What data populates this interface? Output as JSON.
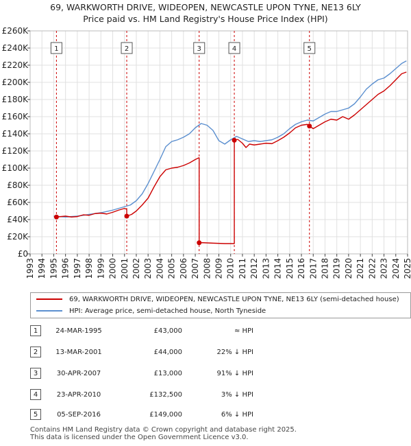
{
  "title": {
    "line1": "69, WARKWORTH DRIVE, WIDEOPEN, NEWCASTLE UPON TYNE, NE13 6LY",
    "line2": "Price paid vs. HM Land Registry's House Price Index (HPI)"
  },
  "colors": {
    "price_paid": "#cc0000",
    "hpi": "#5b8fcf",
    "sale_marker_line": "#cc0000",
    "grid": "#e0e0e0"
  },
  "chart_data": {
    "type": "line",
    "xlim": [
      1993,
      2025
    ],
    "ylim": [
      0,
      260000
    ],
    "x_ticks": [
      "1993",
      "1994",
      "1995",
      "1996",
      "1997",
      "1998",
      "1999",
      "2000",
      "2001",
      "2002",
      "2003",
      "2004",
      "2005",
      "2006",
      "2007",
      "2008",
      "2009",
      "2010",
      "2011",
      "2012",
      "2013",
      "2014",
      "2015",
      "2016",
      "2017",
      "2018",
      "2019",
      "2020",
      "2021",
      "2022",
      "2023",
      "2024",
      "2025"
    ],
    "y_ticks": [
      {
        "value": 0,
        "label": "£0"
      },
      {
        "value": 20000,
        "label": "£20K"
      },
      {
        "value": 40000,
        "label": "£40K"
      },
      {
        "value": 60000,
        "label": "£60K"
      },
      {
        "value": 80000,
        "label": "£80K"
      },
      {
        "value": 100000,
        "label": "£100K"
      },
      {
        "value": 120000,
        "label": "£120K"
      },
      {
        "value": 140000,
        "label": "£140K"
      },
      {
        "value": 160000,
        "label": "£160K"
      },
      {
        "value": 180000,
        "label": "£180K"
      },
      {
        "value": 200000,
        "label": "£200K"
      },
      {
        "value": 220000,
        "label": "£220K"
      },
      {
        "value": 240000,
        "label": "£240K"
      },
      {
        "value": 260000,
        "label": "£260K"
      }
    ],
    "grid": true,
    "legend_position": "bottom",
    "series": [
      {
        "name": "69, WARKWORTH DRIVE, WIDEOPEN, NEWCASTLE UPON TYNE, NE13 6LY (semi-detached house)",
        "color": "#cc0000",
        "points": [
          [
            1995.23,
            43000
          ],
          [
            1995.6,
            43500
          ],
          [
            1996.0,
            44000
          ],
          [
            1996.5,
            43000
          ],
          [
            1997.0,
            43500
          ],
          [
            1997.5,
            45500
          ],
          [
            1998.0,
            45000
          ],
          [
            1998.5,
            47000
          ],
          [
            1999.0,
            47500
          ],
          [
            1999.5,
            46500
          ],
          [
            2000.0,
            48500
          ],
          [
            2000.5,
            51000
          ],
          [
            2001.0,
            53000
          ],
          [
            2001.19,
            52000
          ],
          [
            2001.19,
            44000
          ],
          [
            2001.6,
            46000
          ],
          [
            2002.0,
            50000
          ],
          [
            2002.5,
            57000
          ],
          [
            2003.0,
            65000
          ],
          [
            2003.5,
            78000
          ],
          [
            2004.0,
            90000
          ],
          [
            2004.5,
            98000
          ],
          [
            2005.0,
            100000
          ],
          [
            2005.5,
            101000
          ],
          [
            2006.0,
            103000
          ],
          [
            2006.5,
            106000
          ],
          [
            2007.0,
            110000
          ],
          [
            2007.3,
            112000
          ],
          [
            2007.33,
            112000
          ],
          [
            2007.33,
            13000
          ],
          [
            2007.7,
            13000
          ],
          [
            2008.5,
            12500
          ],
          [
            2009.5,
            12000
          ],
          [
            2010.31,
            12000
          ],
          [
            2010.31,
            132500
          ],
          [
            2010.6,
            133500
          ],
          [
            2011.0,
            129000
          ],
          [
            2011.3,
            124000
          ],
          [
            2011.6,
            128000
          ],
          [
            2012.0,
            127000
          ],
          [
            2012.5,
            128000
          ],
          [
            2013.0,
            129000
          ],
          [
            2013.5,
            128500
          ],
          [
            2014.0,
            132000
          ],
          [
            2014.5,
            136000
          ],
          [
            2015.0,
            141000
          ],
          [
            2015.5,
            147000
          ],
          [
            2016.0,
            150000
          ],
          [
            2016.5,
            151000
          ],
          [
            2016.68,
            149000
          ],
          [
            2017.0,
            146000
          ],
          [
            2017.5,
            150000
          ],
          [
            2018.0,
            154000
          ],
          [
            2018.5,
            157000
          ],
          [
            2019.0,
            156000
          ],
          [
            2019.5,
            160000
          ],
          [
            2020.0,
            157000
          ],
          [
            2020.5,
            162000
          ],
          [
            2021.0,
            168000
          ],
          [
            2021.5,
            174000
          ],
          [
            2022.0,
            180000
          ],
          [
            2022.5,
            186000
          ],
          [
            2023.0,
            190000
          ],
          [
            2023.5,
            196000
          ],
          [
            2024.0,
            203000
          ],
          [
            2024.5,
            210000
          ],
          [
            2024.9,
            212000
          ]
        ]
      },
      {
        "name": "HPI: Average price, semi-detached house, North Tyneside",
        "color": "#5b8fcf",
        "points": [
          [
            1995.0,
            44000
          ],
          [
            1995.5,
            43500
          ],
          [
            1996.0,
            43000
          ],
          [
            1996.5,
            43500
          ],
          [
            1997.0,
            44000
          ],
          [
            1997.5,
            45000
          ],
          [
            1998.0,
            46000
          ],
          [
            1998.5,
            47000
          ],
          [
            1999.0,
            48000
          ],
          [
            1999.5,
            49500
          ],
          [
            2000.0,
            51000
          ],
          [
            2000.5,
            53000
          ],
          [
            2001.0,
            55000
          ],
          [
            2001.5,
            57000
          ],
          [
            2002.0,
            62000
          ],
          [
            2002.5,
            70000
          ],
          [
            2003.0,
            82000
          ],
          [
            2003.5,
            96000
          ],
          [
            2004.0,
            110000
          ],
          [
            2004.5,
            125000
          ],
          [
            2005.0,
            131000
          ],
          [
            2005.5,
            133000
          ],
          [
            2006.0,
            136000
          ],
          [
            2006.5,
            140000
          ],
          [
            2007.0,
            147000
          ],
          [
            2007.5,
            152000
          ],
          [
            2008.0,
            150000
          ],
          [
            2008.5,
            144000
          ],
          [
            2009.0,
            132000
          ],
          [
            2009.5,
            128000
          ],
          [
            2010.0,
            133000
          ],
          [
            2010.5,
            137000
          ],
          [
            2011.0,
            134000
          ],
          [
            2011.5,
            131000
          ],
          [
            2012.0,
            132000
          ],
          [
            2012.5,
            131000
          ],
          [
            2013.0,
            132000
          ],
          [
            2013.5,
            133000
          ],
          [
            2014.0,
            136000
          ],
          [
            2014.5,
            140000
          ],
          [
            2015.0,
            146000
          ],
          [
            2015.5,
            151000
          ],
          [
            2016.0,
            154000
          ],
          [
            2016.5,
            156000
          ],
          [
            2017.0,
            155000
          ],
          [
            2017.5,
            159000
          ],
          [
            2018.0,
            163000
          ],
          [
            2018.5,
            166000
          ],
          [
            2019.0,
            166000
          ],
          [
            2019.5,
            168000
          ],
          [
            2020.0,
            170000
          ],
          [
            2020.5,
            175000
          ],
          [
            2021.0,
            183000
          ],
          [
            2021.5,
            192000
          ],
          [
            2022.0,
            198000
          ],
          [
            2022.5,
            203000
          ],
          [
            2023.0,
            205000
          ],
          [
            2023.5,
            210000
          ],
          [
            2024.0,
            216000
          ],
          [
            2024.5,
            222000
          ],
          [
            2024.9,
            225000
          ]
        ]
      }
    ],
    "sales": [
      {
        "label": "1",
        "x": 1995.23,
        "y": 43000
      },
      {
        "label": "2",
        "x": 2001.19,
        "y": 44000
      },
      {
        "label": "3",
        "x": 2007.33,
        "y": 13000
      },
      {
        "label": "4",
        "x": 2010.31,
        "y": 132500
      },
      {
        "label": "5",
        "x": 2016.68,
        "y": 149000
      }
    ]
  },
  "legend": {
    "price_paid": "69, WARKWORTH DRIVE, WIDEOPEN, NEWCASTLE UPON TYNE, NE13 6LY (semi-detached house)",
    "hpi": "HPI: Average price, semi-detached house, North Tyneside"
  },
  "transactions": [
    {
      "num": "1",
      "date": "24-MAR-1995",
      "price": "£43,000",
      "hpi": "≈ HPI"
    },
    {
      "num": "2",
      "date": "13-MAR-2001",
      "price": "£44,000",
      "hpi": "22% ↓ HPI"
    },
    {
      "num": "3",
      "date": "30-APR-2007",
      "price": "£13,000",
      "hpi": "91% ↓ HPI"
    },
    {
      "num": "4",
      "date": "23-APR-2010",
      "price": "£132,500",
      "hpi": "3% ↓ HPI"
    },
    {
      "num": "5",
      "date": "05-SEP-2016",
      "price": "£149,000",
      "hpi": "6% ↓ HPI"
    }
  ],
  "footer": {
    "line1": "Contains HM Land Registry data © Crown copyright and database right 2025.",
    "line2": "This data is licensed under the Open Government Licence v3.0."
  }
}
